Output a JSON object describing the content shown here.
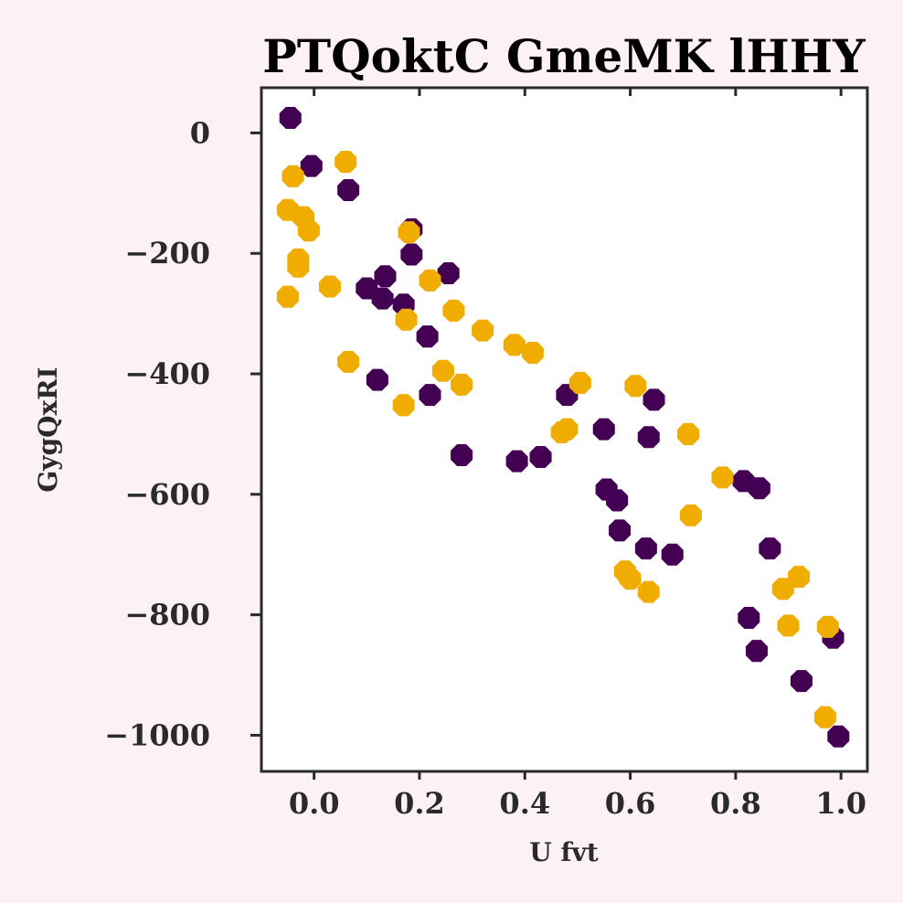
{
  "chart_data": {
    "type": "scatter",
    "title": "PTQoktC GmeMK lHHY",
    "xlabel": "U fvt",
    "ylabel": "GygQxRI",
    "xlim": [
      -0.1,
      1.05
    ],
    "ylim": [
      -1060,
      75
    ],
    "xticks": [
      0.0,
      0.2,
      0.4,
      0.6,
      0.8,
      1.0
    ],
    "xtick_labels": [
      "0.0",
      "0.2",
      "0.4",
      "0.6",
      "0.8",
      "1.0"
    ],
    "yticks": [
      0,
      -200,
      -400,
      -600,
      -800,
      -1000
    ],
    "ytick_labels": [
      "0",
      "−200",
      "−400",
      "−600",
      "−800",
      "−1000"
    ],
    "grid": false,
    "series": [
      {
        "color": "#440154",
        "points": [
          [
            -0.045,
            25
          ],
          [
            -0.005,
            -55
          ],
          [
            0.065,
            -95
          ],
          [
            0.1,
            -258
          ],
          [
            0.13,
            -275
          ],
          [
            0.135,
            -238
          ],
          [
            0.17,
            -285
          ],
          [
            0.185,
            -160
          ],
          [
            0.185,
            -202
          ],
          [
            0.215,
            -338
          ],
          [
            0.22,
            -435
          ],
          [
            0.255,
            -233
          ],
          [
            0.28,
            -535
          ],
          [
            0.12,
            -410
          ],
          [
            0.385,
            -545
          ],
          [
            0.43,
            -538
          ],
          [
            0.48,
            -435
          ],
          [
            0.55,
            -492
          ],
          [
            0.555,
            -592
          ],
          [
            0.575,
            -610
          ],
          [
            0.58,
            -660
          ],
          [
            0.63,
            -690
          ],
          [
            0.635,
            -505
          ],
          [
            0.645,
            -443
          ],
          [
            0.68,
            -700
          ],
          [
            0.815,
            -578
          ],
          [
            0.825,
            -805
          ],
          [
            0.84,
            -860
          ],
          [
            0.845,
            -590
          ],
          [
            0.865,
            -690
          ],
          [
            0.925,
            -910
          ],
          [
            0.985,
            -838
          ],
          [
            0.995,
            -1002
          ]
        ]
      },
      {
        "color": "#f1ac00",
        "points": [
          [
            -0.05,
            -272
          ],
          [
            -0.05,
            -128
          ],
          [
            -0.04,
            -72
          ],
          [
            -0.03,
            -210
          ],
          [
            -0.03,
            -222
          ],
          [
            -0.02,
            -140
          ],
          [
            -0.01,
            -162
          ],
          [
            0.03,
            -255
          ],
          [
            0.06,
            -48
          ],
          [
            0.065,
            -380
          ],
          [
            0.17,
            -452
          ],
          [
            0.175,
            -310
          ],
          [
            0.18,
            -165
          ],
          [
            0.22,
            -245
          ],
          [
            0.245,
            -395
          ],
          [
            0.265,
            -295
          ],
          [
            0.28,
            -418
          ],
          [
            0.32,
            -328
          ],
          [
            0.38,
            -352
          ],
          [
            0.415,
            -365
          ],
          [
            0.47,
            -497
          ],
          [
            0.48,
            -492
          ],
          [
            0.505,
            -415
          ],
          [
            0.59,
            -728
          ],
          [
            0.6,
            -740
          ],
          [
            0.61,
            -420
          ],
          [
            0.635,
            -762
          ],
          [
            0.71,
            -500
          ],
          [
            0.715,
            -635
          ],
          [
            0.775,
            -572
          ],
          [
            0.89,
            -757
          ],
          [
            0.9,
            -818
          ],
          [
            0.92,
            -737
          ],
          [
            0.97,
            -970
          ],
          [
            0.975,
            -820
          ]
        ]
      }
    ]
  }
}
